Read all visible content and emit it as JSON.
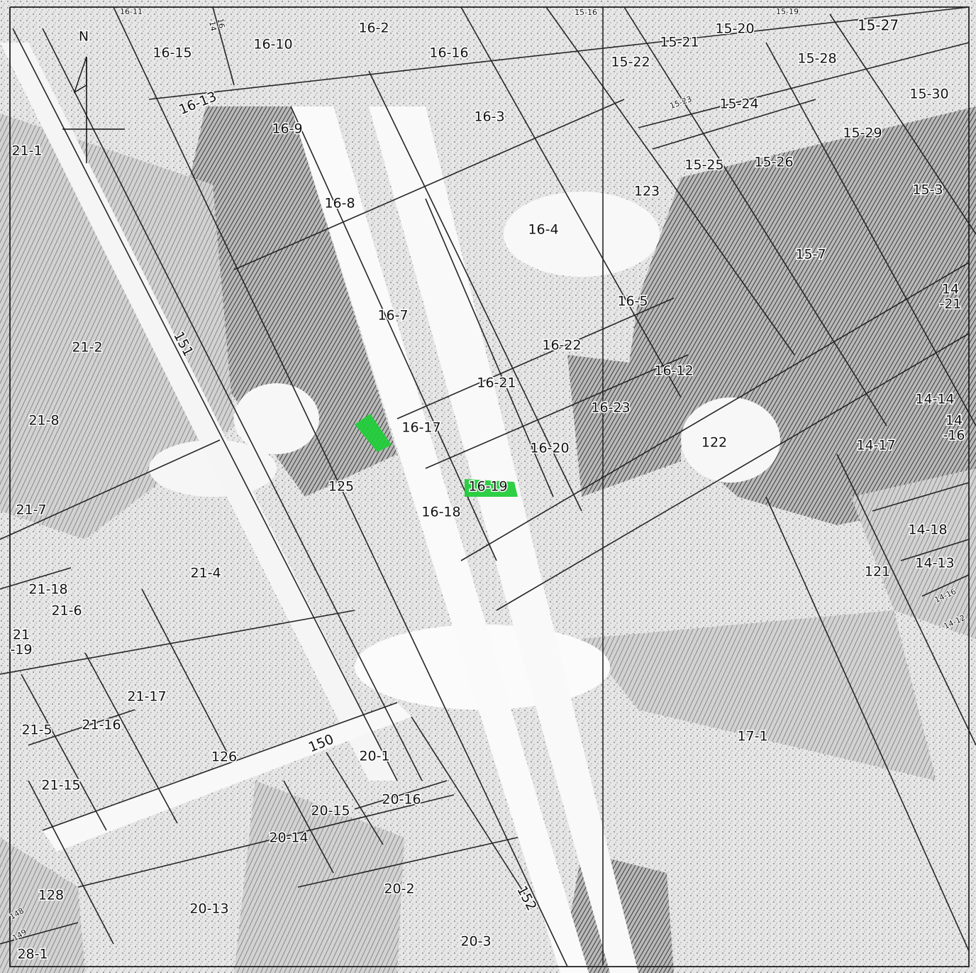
{
  "map": {
    "north_label": "N",
    "highlight_color": "#22cc3a",
    "parcels": {
      "p16_11": "16-11",
      "p16_14": "16\n-14",
      "p16_2": "16-2",
      "p15_16": "15-16",
      "p15_19": "15-19",
      "p15_27": "15-27",
      "p16_15": "16-15",
      "p16_10": "16-10",
      "p16_16": "16-16",
      "p15_21": "15-21",
      "p15_20": "15-20",
      "p15_22": "15-22",
      "p15_28": "15-28",
      "p16_13": "16-13",
      "p15_23": "15-23",
      "p15_24": "15-24",
      "p15_30": "15-30",
      "p16_3": "16-3",
      "p16_9": "16-9",
      "p15_29": "15-29",
      "p21_1": "21-1",
      "p15_25": "15-25",
      "p15_26": "15-26",
      "p123": "123",
      "p15_3": "15-3",
      "p16_8": "16-8",
      "p16_4": "16-4",
      "p15_7": "15-7",
      "p14_21": "14\n-21",
      "p16_5": "16-5",
      "p16_7": "16-7",
      "p21_2": "21-2",
      "p16_22": "16-22",
      "p16_12": "16-12",
      "p16_21": "16-21",
      "p16_23": "16-23",
      "p14_14": "14-14",
      "p21_8": "21-8",
      "p16_17": "16-17",
      "p16_20": "16-20",
      "p122": "122",
      "p14_17": "14-17",
      "p14_16a": "14\n-16",
      "p16_19": "16-19",
      "p125": "125",
      "p16_18": "16-18",
      "p21_7": "21-7",
      "p14_18": "14-18",
      "p21_4": "21-4",
      "p121": "121",
      "p14_13": "14-13",
      "p21_18": "21-18",
      "p21_6": "21-6",
      "p14_16b": "14-16",
      "p14_12": "14-12",
      "p21_19": "21\n-19",
      "p21_17": "21-17",
      "p17_1": "17-1",
      "p21_5": "21-5",
      "p21_16": "21-16",
      "p150": "150",
      "p126": "126",
      "p20_1": "20-1",
      "p21_15": "21-15",
      "p20_16": "20-16",
      "p20_15": "20-15",
      "p20_14": "20-14",
      "p128": "128",
      "p20_2": "20-2",
      "p152": "152",
      "p20_13": "20-13",
      "p149": "149",
      "p148": "148",
      "p28_1": "28-1",
      "p20_3": "20-3",
      "p151": "151"
    }
  }
}
